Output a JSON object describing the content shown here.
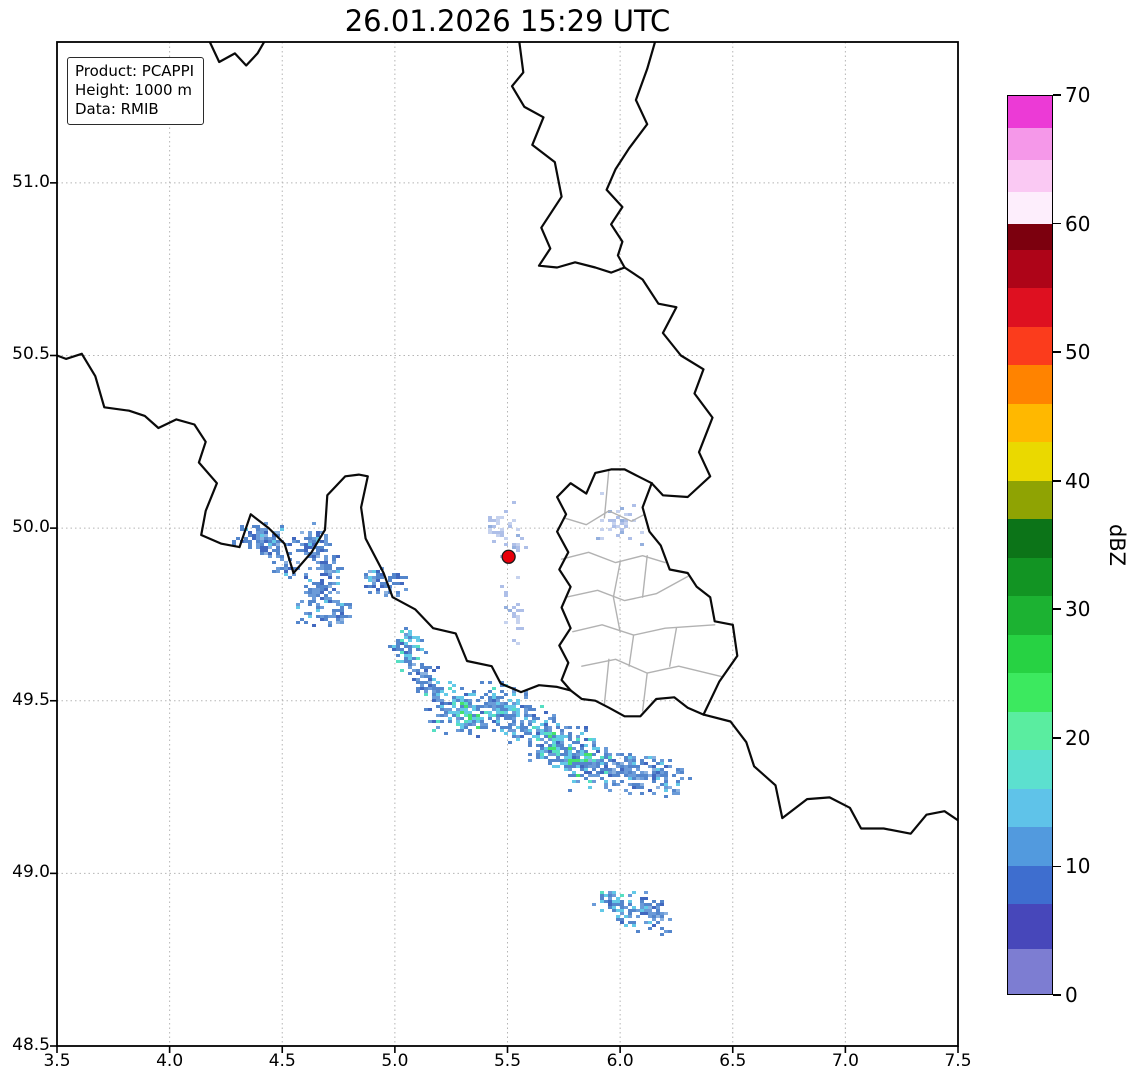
{
  "figure": {
    "title": "26.01.2026 15:29 UTC"
  },
  "info_box": {
    "lines": [
      "Product: PCAPPI",
      "Height: 1000 m",
      "Data: RMIB"
    ]
  },
  "axes": {
    "x": {
      "min": 3.5,
      "max": 7.5,
      "ticks": [
        3.5,
        4.0,
        4.5,
        5.0,
        5.5,
        6.0,
        6.5,
        7.0,
        7.5
      ],
      "tick_labels": [
        "3.5",
        "4.0",
        "4.5",
        "5.0",
        "5.5",
        "6.0",
        "6.5",
        "7.0",
        "7.5"
      ]
    },
    "y": {
      "min": 48.5,
      "max": 51.408,
      "ticks": [
        48.5,
        49.0,
        49.5,
        50.0,
        50.5,
        51.0
      ],
      "tick_labels": [
        "48.5",
        "49.0",
        "49.5",
        "50.0",
        "50.5",
        "51.0"
      ]
    },
    "grid_color": "#b5b5b5"
  },
  "colorbar": {
    "label": "dBZ",
    "min": 0,
    "max": 70,
    "ticks": [
      0,
      10,
      20,
      30,
      40,
      50,
      60,
      70
    ],
    "tick_labels": [
      "0",
      "10",
      "20",
      "30",
      "40",
      "50",
      "60",
      "70"
    ],
    "segments": [
      {
        "to": 3.5,
        "color": "#7d7dd2"
      },
      {
        "to": 7,
        "color": "#4747ba"
      },
      {
        "to": 10,
        "color": "#3e6ecf"
      },
      {
        "to": 13,
        "color": "#529ade"
      },
      {
        "to": 16,
        "color": "#5fc3e9"
      },
      {
        "to": 19,
        "color": "#5ce0cf"
      },
      {
        "to": 22,
        "color": "#5aeda0"
      },
      {
        "to": 25,
        "color": "#3ce95f"
      },
      {
        "to": 28,
        "color": "#27d243"
      },
      {
        "to": 31,
        "color": "#1cb232"
      },
      {
        "to": 34,
        "color": "#129423"
      },
      {
        "to": 37,
        "color": "#0c7418"
      },
      {
        "to": 40,
        "color": "#8fa303"
      },
      {
        "to": 43,
        "color": "#ead900"
      },
      {
        "to": 46,
        "color": "#ffb800"
      },
      {
        "to": 49,
        "color": "#ff8300"
      },
      {
        "to": 52,
        "color": "#fb3c1c"
      },
      {
        "to": 55,
        "color": "#de1020"
      },
      {
        "to": 58,
        "color": "#ae0418"
      },
      {
        "to": 60,
        "color": "#7c000e"
      },
      {
        "to": 62.5,
        "color": "#fdeefc"
      },
      {
        "to": 65,
        "color": "#fac9f3"
      },
      {
        "to": 67.5,
        "color": "#f598e9"
      },
      {
        "to": 70,
        "color": "#ec3ad6"
      }
    ]
  },
  "map": {
    "border_color": "#0a0a0a",
    "canton_color": "#b2b2b2",
    "radar_site": {
      "lon": 5.505,
      "lat": 49.917,
      "fill": "#e8000b",
      "edge": "#1a1a1a"
    },
    "borders": {
      "fr_be": [
        [
          3.5,
          50.5
        ],
        [
          3.54,
          50.49
        ],
        [
          3.61,
          50.505
        ],
        [
          3.67,
          50.44
        ],
        [
          3.71,
          50.35
        ],
        [
          3.82,
          50.34
        ],
        [
          3.89,
          50.325
        ],
        [
          3.95,
          50.29
        ],
        [
          4.03,
          50.315
        ],
        [
          4.11,
          50.3
        ],
        [
          4.16,
          50.25
        ],
        [
          4.13,
          50.19
        ],
        [
          4.21,
          50.13
        ],
        [
          4.16,
          50.05
        ],
        [
          4.14,
          49.98
        ],
        [
          4.23,
          49.955
        ],
        [
          4.31,
          49.945
        ],
        [
          4.36,
          50.04
        ],
        [
          4.44,
          50.0
        ],
        [
          4.51,
          49.955
        ],
        [
          4.55,
          49.87
        ],
        [
          4.63,
          49.93
        ],
        [
          4.69,
          49.995
        ],
        [
          4.7,
          50.095
        ],
        [
          4.78,
          50.15
        ],
        [
          4.84,
          50.155
        ],
        [
          4.88,
          50.15
        ],
        [
          4.85,
          50.06
        ],
        [
          4.87,
          49.97
        ],
        [
          4.95,
          49.87
        ],
        [
          4.99,
          49.8
        ],
        [
          5.09,
          49.765
        ],
        [
          5.17,
          49.71
        ],
        [
          5.27,
          49.695
        ],
        [
          5.32,
          49.615
        ],
        [
          5.43,
          49.6
        ],
        [
          5.47,
          49.55
        ],
        [
          5.56,
          49.525
        ],
        [
          5.64,
          49.545
        ],
        [
          5.72,
          49.54
        ],
        [
          5.78,
          49.53
        ]
      ],
      "fr_lu_de": [
        [
          5.78,
          49.53
        ],
        [
          5.83,
          49.505
        ],
        [
          5.89,
          49.5
        ],
        [
          5.95,
          49.48
        ],
        [
          6.02,
          49.455
        ],
        [
          6.09,
          49.455
        ],
        [
          6.16,
          49.505
        ],
        [
          6.24,
          49.51
        ],
        [
          6.3,
          49.48
        ],
        [
          6.37,
          49.46
        ],
        [
          6.49,
          49.44
        ],
        [
          6.56,
          49.38
        ],
        [
          6.595,
          49.31
        ],
        [
          6.69,
          49.255
        ],
        [
          6.72,
          49.16
        ],
        [
          6.83,
          49.215
        ],
        [
          6.93,
          49.22
        ],
        [
          7.02,
          49.19
        ],
        [
          7.07,
          49.13
        ],
        [
          7.17,
          49.13
        ],
        [
          7.29,
          49.115
        ],
        [
          7.36,
          49.17
        ],
        [
          7.44,
          49.18
        ],
        [
          7.52,
          49.145
        ]
      ],
      "be_nl_west": [
        [
          4.17,
          51.42
        ],
        [
          4.22,
          51.35
        ],
        [
          4.29,
          51.375
        ],
        [
          4.34,
          51.34
        ],
        [
          4.39,
          51.375
        ],
        [
          4.43,
          51.42
        ]
      ],
      "nl_corridor_w": [
        [
          5.55,
          51.42
        ],
        [
          5.57,
          51.32
        ],
        [
          5.52,
          51.28
        ],
        [
          5.575,
          51.22
        ],
        [
          5.66,
          51.19
        ],
        [
          5.61,
          51.11
        ],
        [
          5.71,
          51.06
        ],
        [
          5.74,
          50.96
        ],
        [
          5.65,
          50.87
        ],
        [
          5.69,
          50.81
        ],
        [
          5.64,
          50.76
        ],
        [
          5.72,
          50.755
        ],
        [
          5.8,
          50.77
        ],
        [
          5.89,
          50.755
        ],
        [
          5.96,
          50.74
        ],
        [
          6.02,
          50.755
        ]
      ],
      "nl_corridor_e": [
        [
          6.16,
          51.42
        ],
        [
          6.12,
          51.33
        ],
        [
          6.07,
          51.24
        ],
        [
          6.12,
          51.17
        ],
        [
          6.04,
          51.1
        ],
        [
          5.98,
          51.04
        ],
        [
          5.94,
          50.98
        ],
        [
          6.01,
          50.93
        ],
        [
          5.96,
          50.88
        ],
        [
          6.01,
          50.83
        ],
        [
          5.99,
          50.79
        ],
        [
          6.02,
          50.755
        ]
      ],
      "be_de": [
        [
          6.02,
          50.755
        ],
        [
          6.1,
          50.72
        ],
        [
          6.17,
          50.65
        ],
        [
          6.25,
          50.64
        ],
        [
          6.19,
          50.565
        ],
        [
          6.27,
          50.5
        ],
        [
          6.37,
          50.46
        ],
        [
          6.33,
          50.39
        ],
        [
          6.41,
          50.32
        ],
        [
          6.35,
          50.22
        ],
        [
          6.4,
          50.15
        ],
        [
          6.3,
          50.09
        ],
        [
          6.19,
          50.095
        ],
        [
          6.14,
          50.13
        ]
      ],
      "lu_east": [
        [
          6.14,
          50.13
        ],
        [
          6.1,
          50.06
        ],
        [
          6.13,
          49.99
        ],
        [
          6.18,
          49.95
        ],
        [
          6.22,
          49.88
        ],
        [
          6.3,
          49.87
        ],
        [
          6.34,
          49.83
        ],
        [
          6.4,
          49.8
        ],
        [
          6.42,
          49.73
        ],
        [
          6.5,
          49.72
        ],
        [
          6.52,
          49.63
        ],
        [
          6.44,
          49.555
        ],
        [
          6.37,
          49.46
        ]
      ],
      "lu_west": [
        [
          5.78,
          49.53
        ],
        [
          5.74,
          49.56
        ],
        [
          5.77,
          49.61
        ],
        [
          5.73,
          49.66
        ],
        [
          5.78,
          49.71
        ],
        [
          5.74,
          49.77
        ],
        [
          5.78,
          49.83
        ],
        [
          5.73,
          49.88
        ],
        [
          5.77,
          49.93
        ],
        [
          5.72,
          49.99
        ],
        [
          5.76,
          50.04
        ],
        [
          5.72,
          50.09
        ],
        [
          5.78,
          50.13
        ],
        [
          5.85,
          50.1
        ],
        [
          5.89,
          50.16
        ],
        [
          5.96,
          50.17
        ],
        [
          6.02,
          50.17
        ],
        [
          6.08,
          50.15
        ],
        [
          6.14,
          50.13
        ]
      ]
    },
    "cantons": [
      [
        [
          5.75,
          50.03
        ],
        [
          5.85,
          50.01
        ],
        [
          5.95,
          50.05
        ],
        [
          6.05,
          50.02
        ],
        [
          6.11,
          50.04
        ]
      ],
      [
        [
          5.74,
          49.91
        ],
        [
          5.86,
          49.93
        ],
        [
          5.98,
          49.9
        ],
        [
          6.1,
          49.92
        ],
        [
          6.2,
          49.9
        ]
      ],
      [
        [
          5.76,
          49.8
        ],
        [
          5.9,
          49.82
        ],
        [
          6.02,
          49.79
        ],
        [
          6.16,
          49.81
        ],
        [
          6.3,
          49.86
        ]
      ],
      [
        [
          5.79,
          49.7
        ],
        [
          5.92,
          49.72
        ],
        [
          6.06,
          49.69
        ],
        [
          6.2,
          49.71
        ],
        [
          6.42,
          49.72
        ]
      ],
      [
        [
          5.83,
          49.6
        ],
        [
          5.98,
          49.62
        ],
        [
          6.12,
          49.58
        ],
        [
          6.26,
          49.6
        ],
        [
          6.45,
          49.57
        ]
      ],
      [
        [
          5.95,
          50.17
        ],
        [
          5.93,
          50.03
        ]
      ],
      [
        [
          6.0,
          49.9
        ],
        [
          5.97,
          49.8
        ],
        [
          6.0,
          49.7
        ]
      ],
      [
        [
          6.12,
          49.92
        ],
        [
          6.1,
          49.8
        ]
      ],
      [
        [
          5.95,
          49.62
        ],
        [
          5.93,
          49.49
        ]
      ],
      [
        [
          6.12,
          49.58
        ],
        [
          6.1,
          49.47
        ]
      ],
      [
        [
          6.25,
          49.71
        ],
        [
          6.22,
          49.6
        ]
      ],
      [
        [
          6.06,
          49.69
        ],
        [
          6.04,
          49.6
        ]
      ]
    ],
    "palettes": {
      "blue": [
        [
          "#5486cc",
          5
        ],
        [
          "#6b9bd8",
          4
        ],
        [
          "#4168bf",
          2
        ],
        [
          "#8ab1e0",
          1
        ],
        [
          "#63c9e7",
          1
        ]
      ],
      "bluecyan": [
        [
          "#5486cc",
          5
        ],
        [
          "#63c9e7",
          3
        ],
        [
          "#6b9bd8",
          2
        ],
        [
          "#4168bf",
          1
        ],
        [
          "#56dfc2",
          1
        ]
      ],
      "strong": [
        [
          "#5486cc",
          3
        ],
        [
          "#63c9e7",
          3
        ],
        [
          "#45e16c",
          3
        ],
        [
          "#56dfc2",
          2
        ],
        [
          "#6b9bd8",
          1
        ]
      ],
      "faint": [
        [
          "#c6d2ee",
          5
        ],
        [
          "#aebfe8",
          4
        ],
        [
          "#95b0de",
          2
        ]
      ]
    },
    "echo_clusters": [
      {
        "lon": 4.42,
        "lat": 49.965,
        "n": 110,
        "sx": 0.09,
        "sy": 0.035,
        "rot": -10,
        "palette": "blue"
      },
      {
        "lon": 4.63,
        "lat": 49.955,
        "n": 70,
        "sx": 0.055,
        "sy": 0.035,
        "rot": 0,
        "palette": "blue"
      },
      {
        "lon": 4.7,
        "lat": 49.885,
        "n": 45,
        "sx": 0.045,
        "sy": 0.03,
        "rot": 0,
        "palette": "blue"
      },
      {
        "lon": 4.645,
        "lat": 49.8,
        "n": 80,
        "sx": 0.06,
        "sy": 0.05,
        "rot": 0,
        "palette": "blue"
      },
      {
        "lon": 4.75,
        "lat": 49.755,
        "n": 30,
        "sx": 0.04,
        "sy": 0.03,
        "rot": 0,
        "palette": "blue"
      },
      {
        "lon": 4.52,
        "lat": 49.9,
        "n": 25,
        "sx": 0.05,
        "sy": 0.03,
        "rot": 0,
        "palette": "blue"
      },
      {
        "lon": 4.94,
        "lat": 49.845,
        "n": 55,
        "sx": 0.075,
        "sy": 0.028,
        "rot": -8,
        "palette": "blue"
      },
      {
        "lon": 5.05,
        "lat": 49.655,
        "n": 65,
        "sx": 0.055,
        "sy": 0.04,
        "rot": -20,
        "palette": "bluecyan"
      },
      {
        "lon": 5.13,
        "lat": 49.565,
        "n": 55,
        "sx": 0.06,
        "sy": 0.035,
        "rot": -15,
        "palette": "blue"
      },
      {
        "lon": 5.28,
        "lat": 49.475,
        "n": 130,
        "sx": 0.11,
        "sy": 0.05,
        "rot": -12,
        "palette": "bluecyan"
      },
      {
        "lon": 5.33,
        "lat": 49.46,
        "n": 40,
        "sx": 0.04,
        "sy": 0.03,
        "rot": 0,
        "palette": "strong"
      },
      {
        "lon": 5.47,
        "lat": 49.48,
        "n": 110,
        "sx": 0.09,
        "sy": 0.045,
        "rot": -10,
        "palette": "bluecyan"
      },
      {
        "lon": 5.63,
        "lat": 49.41,
        "n": 150,
        "sx": 0.11,
        "sy": 0.055,
        "rot": -18,
        "palette": "bluecyan"
      },
      {
        "lon": 5.7,
        "lat": 49.38,
        "n": 50,
        "sx": 0.05,
        "sy": 0.03,
        "rot": 0,
        "palette": "strong"
      },
      {
        "lon": 5.82,
        "lat": 49.335,
        "n": 160,
        "sx": 0.12,
        "sy": 0.055,
        "rot": -15,
        "palette": "bluecyan"
      },
      {
        "lon": 5.8,
        "lat": 49.33,
        "n": 45,
        "sx": 0.045,
        "sy": 0.025,
        "rot": 0,
        "palette": "strong"
      },
      {
        "lon": 6.0,
        "lat": 49.3,
        "n": 120,
        "sx": 0.11,
        "sy": 0.045,
        "rot": -12,
        "palette": "blue"
      },
      {
        "lon": 6.17,
        "lat": 49.29,
        "n": 80,
        "sx": 0.08,
        "sy": 0.035,
        "rot": -15,
        "palette": "blue"
      },
      {
        "lon": 5.99,
        "lat": 48.905,
        "n": 75,
        "sx": 0.085,
        "sy": 0.03,
        "rot": -25,
        "palette": "bluecyan"
      },
      {
        "lon": 6.15,
        "lat": 48.885,
        "n": 60,
        "sx": 0.07,
        "sy": 0.028,
        "rot": -25,
        "palette": "blue"
      },
      {
        "lon": 5.46,
        "lat": 50.0,
        "n": 28,
        "sx": 0.06,
        "sy": 0.05,
        "rot": 0,
        "palette": "faint"
      },
      {
        "lon": 5.52,
        "lat": 49.76,
        "n": 22,
        "sx": 0.035,
        "sy": 0.075,
        "rot": 0,
        "palette": "faint"
      },
      {
        "lon": 5.99,
        "lat": 50.02,
        "n": 34,
        "sx": 0.07,
        "sy": 0.05,
        "rot": 0,
        "palette": "faint"
      },
      {
        "lon": 5.54,
        "lat": 49.955,
        "n": 10,
        "sx": 0.03,
        "sy": 0.02,
        "rot": 0,
        "palette": "faint"
      }
    ]
  }
}
